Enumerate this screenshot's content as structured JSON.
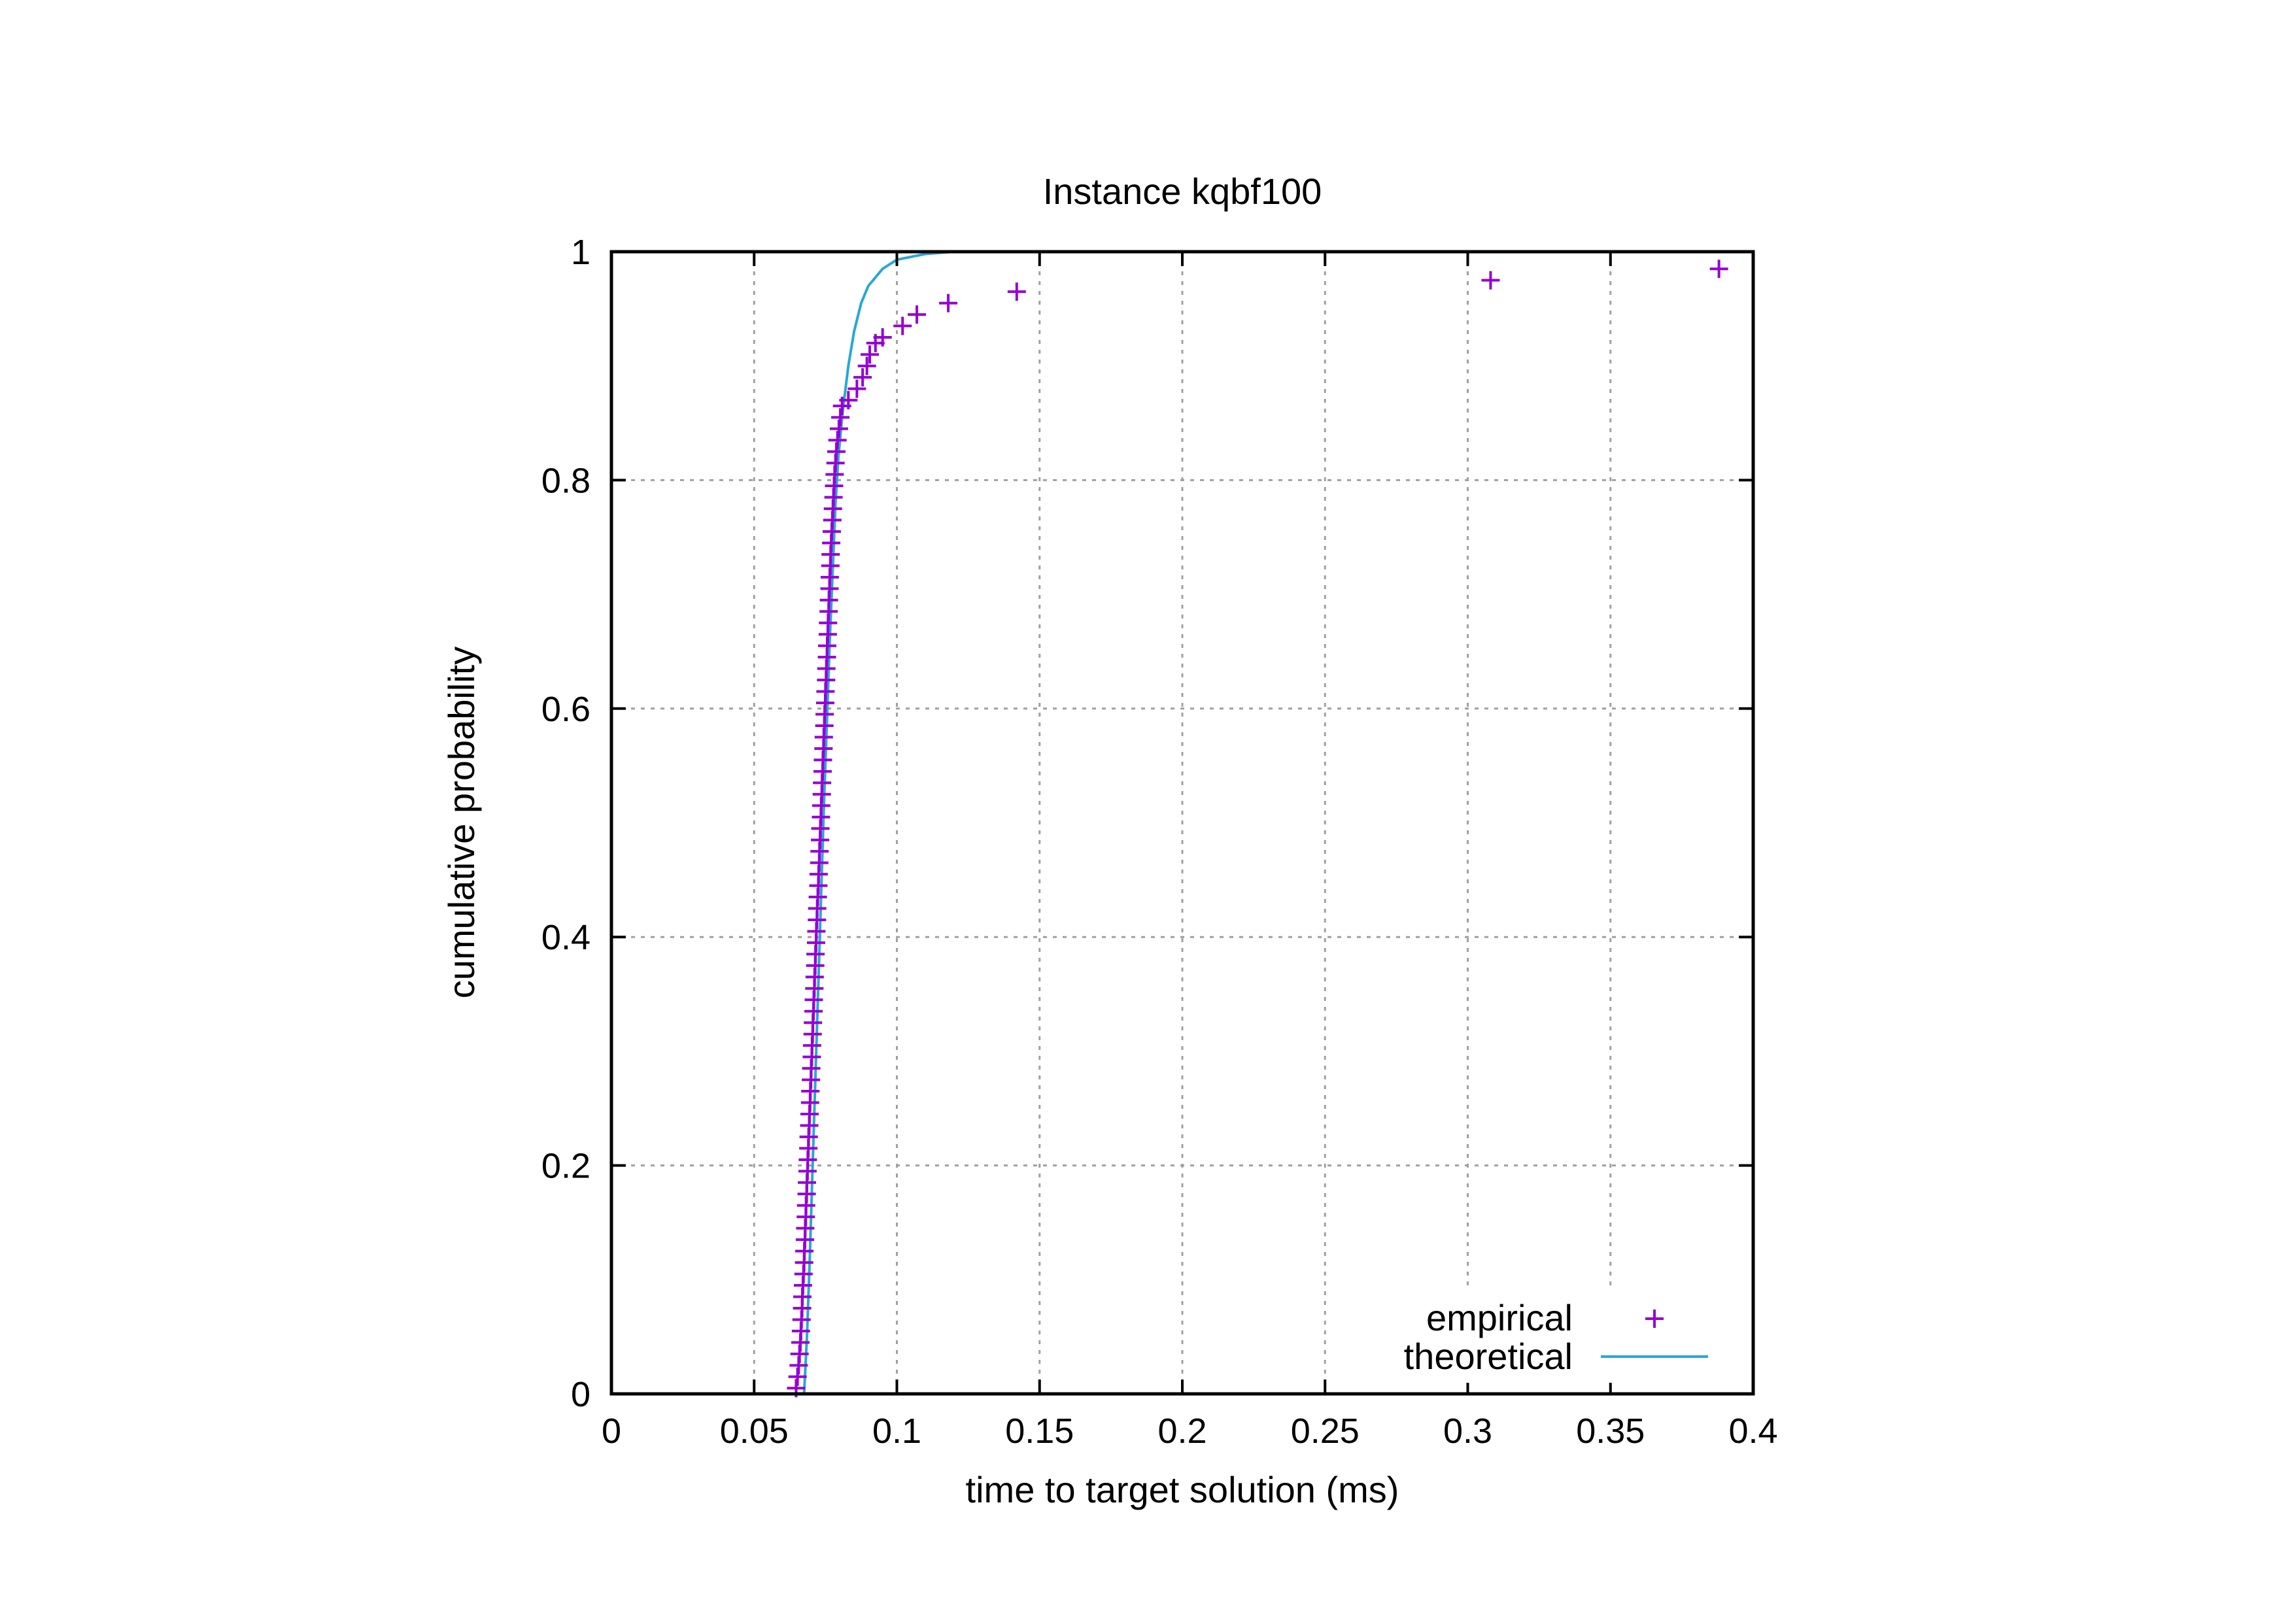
{
  "chart_data": {
    "type": "scatter",
    "title": "Instance kqbf100",
    "xlabel": "time to target solution (ms)",
    "ylabel": "cumulative probability",
    "xlim": [
      0,
      0.4
    ],
    "ylim": [
      0,
      1
    ],
    "xticks": [
      0,
      0.05,
      0.1,
      0.15,
      0.2,
      0.25,
      0.3,
      0.35,
      0.4
    ],
    "yticks": [
      0,
      0.2,
      0.4,
      0.6,
      0.8,
      1
    ],
    "xtick_labels": [
      "0",
      "0.05",
      "0.1",
      "0.15",
      "0.2",
      "0.25",
      "0.3",
      "0.35",
      "0.4"
    ],
    "ytick_labels": [
      "0",
      "0.2",
      "0.4",
      "0.6",
      "0.8",
      "1"
    ],
    "grid": true,
    "legend_position": "bottom-right",
    "series": [
      {
        "name": "empirical",
        "style": "points",
        "marker": "plus",
        "color": "#9400d3",
        "points": [
          [
            0.0647,
            0.005
          ],
          [
            0.0652,
            0.015
          ],
          [
            0.0656,
            0.025
          ],
          [
            0.0659,
            0.035
          ],
          [
            0.0662,
            0.045
          ],
          [
            0.0664,
            0.055
          ],
          [
            0.0666,
            0.065
          ],
          [
            0.0668,
            0.075
          ],
          [
            0.0669,
            0.085
          ],
          [
            0.0671,
            0.095
          ],
          [
            0.0673,
            0.105
          ],
          [
            0.0675,
            0.115
          ],
          [
            0.0676,
            0.125
          ],
          [
            0.0678,
            0.135
          ],
          [
            0.0679,
            0.145
          ],
          [
            0.0681,
            0.155
          ],
          [
            0.0682,
            0.165
          ],
          [
            0.0684,
            0.175
          ],
          [
            0.0685,
            0.185
          ],
          [
            0.0687,
            0.195
          ],
          [
            0.0688,
            0.205
          ],
          [
            0.069,
            0.215
          ],
          [
            0.0691,
            0.225
          ],
          [
            0.0693,
            0.235
          ],
          [
            0.0694,
            0.245
          ],
          [
            0.0696,
            0.255
          ],
          [
            0.0697,
            0.265
          ],
          [
            0.0699,
            0.275
          ],
          [
            0.07,
            0.285
          ],
          [
            0.0702,
            0.295
          ],
          [
            0.0703,
            0.305
          ],
          [
            0.0705,
            0.315
          ],
          [
            0.0706,
            0.325
          ],
          [
            0.0708,
            0.335
          ],
          [
            0.0709,
            0.345
          ],
          [
            0.0711,
            0.355
          ],
          [
            0.0712,
            0.365
          ],
          [
            0.0714,
            0.375
          ],
          [
            0.0715,
            0.385
          ],
          [
            0.0717,
            0.395
          ],
          [
            0.0718,
            0.405
          ],
          [
            0.072,
            0.415
          ],
          [
            0.0721,
            0.425
          ],
          [
            0.0723,
            0.435
          ],
          [
            0.0725,
            0.445
          ],
          [
            0.0726,
            0.455
          ],
          [
            0.0728,
            0.465
          ],
          [
            0.0729,
            0.475
          ],
          [
            0.0731,
            0.485
          ],
          [
            0.0732,
            0.495
          ],
          [
            0.0734,
            0.505
          ],
          [
            0.0735,
            0.515
          ],
          [
            0.0737,
            0.525
          ],
          [
            0.0738,
            0.535
          ],
          [
            0.074,
            0.545
          ],
          [
            0.0741,
            0.555
          ],
          [
            0.0743,
            0.565
          ],
          [
            0.0744,
            0.575
          ],
          [
            0.0746,
            0.585
          ],
          [
            0.0747,
            0.595
          ],
          [
            0.0749,
            0.605
          ],
          [
            0.075,
            0.615
          ],
          [
            0.0752,
            0.625
          ],
          [
            0.0753,
            0.635
          ],
          [
            0.0755,
            0.645
          ],
          [
            0.0756,
            0.655
          ],
          [
            0.0758,
            0.665
          ],
          [
            0.0759,
            0.675
          ],
          [
            0.0761,
            0.685
          ],
          [
            0.0762,
            0.695
          ],
          [
            0.0764,
            0.705
          ],
          [
            0.0765,
            0.715
          ],
          [
            0.0767,
            0.725
          ],
          [
            0.0768,
            0.735
          ],
          [
            0.077,
            0.745
          ],
          [
            0.0772,
            0.755
          ],
          [
            0.0774,
            0.765
          ],
          [
            0.0776,
            0.775
          ],
          [
            0.0778,
            0.785
          ],
          [
            0.078,
            0.795
          ],
          [
            0.0782,
            0.805
          ],
          [
            0.0785,
            0.815
          ],
          [
            0.0788,
            0.825
          ],
          [
            0.0792,
            0.835
          ],
          [
            0.0797,
            0.845
          ],
          [
            0.0802,
            0.855
          ],
          [
            0.0808,
            0.865
          ],
          [
            0.083,
            0.87
          ],
          [
            0.086,
            0.88
          ],
          [
            0.088,
            0.89
          ],
          [
            0.0895,
            0.9
          ],
          [
            0.0905,
            0.91
          ],
          [
            0.0925,
            0.92
          ],
          [
            0.095,
            0.925
          ],
          [
            0.102,
            0.935
          ],
          [
            0.107,
            0.945
          ],
          [
            0.118,
            0.955
          ],
          [
            0.142,
            0.965
          ],
          [
            0.308,
            0.975
          ],
          [
            0.388,
            0.985
          ]
        ]
      },
      {
        "name": "theoretical",
        "style": "line",
        "color": "#29a8d4",
        "points": [
          [
            0.0675,
            0.0
          ],
          [
            0.0685,
            0.05
          ],
          [
            0.0695,
            0.12
          ],
          [
            0.0705,
            0.2
          ],
          [
            0.0715,
            0.28
          ],
          [
            0.0725,
            0.36
          ],
          [
            0.0735,
            0.44
          ],
          [
            0.0745,
            0.52
          ],
          [
            0.0755,
            0.59
          ],
          [
            0.0765,
            0.66
          ],
          [
            0.0775,
            0.72
          ],
          [
            0.0785,
            0.78
          ],
          [
            0.0795,
            0.82
          ],
          [
            0.081,
            0.86
          ],
          [
            0.083,
            0.9
          ],
          [
            0.085,
            0.93
          ],
          [
            0.0875,
            0.955
          ],
          [
            0.09,
            0.97
          ],
          [
            0.095,
            0.985
          ],
          [
            0.1,
            0.993
          ],
          [
            0.11,
            0.998
          ],
          [
            0.12,
            1.0
          ]
        ]
      }
    ]
  }
}
